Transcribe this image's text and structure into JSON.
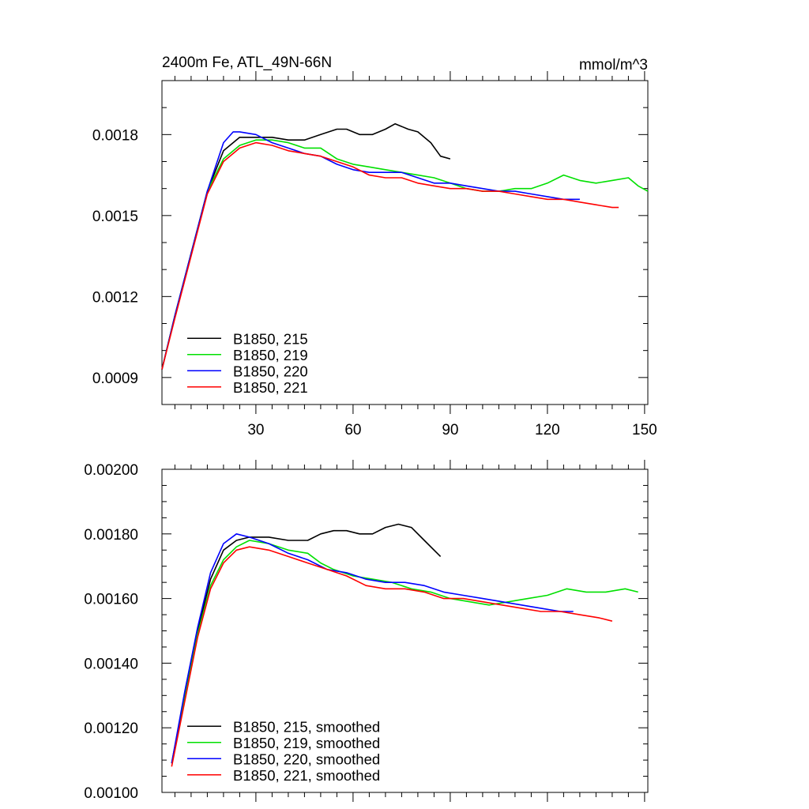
{
  "chart_data": [
    {
      "type": "line",
      "title": "2400m Fe, ATL_49N-66N",
      "units": "mmol/m^3",
      "xlabel": "",
      "ylabel": "",
      "xlim": [
        1,
        151
      ],
      "ylim": [
        0.0008,
        0.002
      ],
      "xticks": [
        30,
        60,
        90,
        120,
        150
      ],
      "xtick_labels": [
        "30",
        "60",
        "90",
        "120",
        "150"
      ],
      "yticks": [
        0.0009,
        0.0012,
        0.0015,
        0.0018
      ],
      "ytick_labels": [
        "0.0009",
        "0.0012",
        "0.0015",
        "0.0018"
      ],
      "legend_position": "bottom-left",
      "series": [
        {
          "name": "B1850, 215",
          "color": "#000000",
          "x": [
            1,
            5,
            10,
            15,
            20,
            25,
            30,
            35,
            40,
            45,
            50,
            55,
            58,
            62,
            66,
            70,
            73,
            77,
            80,
            84,
            87,
            90
          ],
          "y": [
            0.00093,
            0.00113,
            0.00136,
            0.00159,
            0.00174,
            0.00179,
            0.00179,
            0.00179,
            0.00178,
            0.00178,
            0.0018,
            0.00182,
            0.00182,
            0.0018,
            0.0018,
            0.00182,
            0.00184,
            0.00182,
            0.00181,
            0.00177,
            0.00172,
            0.00171
          ]
        },
        {
          "name": "B1850, 219",
          "color": "#00e000",
          "x": [
            1,
            5,
            10,
            15,
            20,
            25,
            30,
            35,
            40,
            45,
            50,
            55,
            60,
            65,
            70,
            75,
            80,
            85,
            90,
            95,
            100,
            105,
            110,
            115,
            120,
            125,
            130,
            135,
            140,
            145,
            148,
            151
          ],
          "y": [
            0.00093,
            0.00113,
            0.00136,
            0.00159,
            0.00171,
            0.00176,
            0.00178,
            0.00178,
            0.00177,
            0.00175,
            0.00175,
            0.00171,
            0.00169,
            0.00168,
            0.00167,
            0.00166,
            0.00165,
            0.00164,
            0.00162,
            0.0016,
            0.00159,
            0.00159,
            0.0016,
            0.0016,
            0.00162,
            0.00165,
            0.00163,
            0.00162,
            0.00163,
            0.00164,
            0.00161,
            0.00159
          ]
        },
        {
          "name": "B1850, 220",
          "color": "#0000ff",
          "x": [
            1,
            5,
            10,
            15,
            20,
            23,
            25,
            30,
            35,
            40,
            45,
            50,
            55,
            60,
            65,
            70,
            75,
            80,
            85,
            90,
            95,
            100,
            105,
            110,
            115,
            120,
            125,
            130
          ],
          "y": [
            0.00093,
            0.00113,
            0.00136,
            0.00159,
            0.00177,
            0.00181,
            0.00181,
            0.0018,
            0.00177,
            0.00175,
            0.00173,
            0.00172,
            0.00169,
            0.00167,
            0.00166,
            0.00166,
            0.00166,
            0.00164,
            0.00162,
            0.00162,
            0.00161,
            0.0016,
            0.00159,
            0.00159,
            0.00158,
            0.00157,
            0.00156,
            0.00156
          ]
        },
        {
          "name": "B1850, 221",
          "color": "#ff0000",
          "x": [
            1,
            5,
            10,
            15,
            20,
            25,
            30,
            35,
            40,
            45,
            50,
            55,
            60,
            65,
            70,
            75,
            80,
            85,
            90,
            95,
            100,
            105,
            110,
            115,
            120,
            125,
            130,
            135,
            140,
            142
          ],
          "y": [
            0.00093,
            0.00112,
            0.00135,
            0.00158,
            0.0017,
            0.00175,
            0.00177,
            0.00176,
            0.00174,
            0.00173,
            0.00172,
            0.0017,
            0.00168,
            0.00165,
            0.00164,
            0.00164,
            0.00162,
            0.00161,
            0.0016,
            0.0016,
            0.00159,
            0.00159,
            0.00158,
            0.00157,
            0.00156,
            0.00156,
            0.00155,
            0.00154,
            0.00153,
            0.00153
          ]
        }
      ]
    },
    {
      "type": "line",
      "title": "",
      "xlabel": "",
      "ylabel": "",
      "xlim": [
        1,
        151
      ],
      "ylim": [
        0.001,
        0.002
      ],
      "xticks": [
        30,
        60,
        90,
        120,
        150
      ],
      "yticks": [
        0.001,
        0.0012,
        0.0014,
        0.0016,
        0.0018,
        0.002
      ],
      "ytick_labels": [
        "0.00100",
        "0.00120",
        "0.00140",
        "0.00160",
        "0.00180",
        "0.00200"
      ],
      "legend_position": "bottom-left",
      "series": [
        {
          "name": "B1850, 215, smoothed",
          "color": "#000000",
          "x": [
            4,
            8,
            12,
            16,
            20,
            24,
            28,
            34,
            40,
            46,
            50,
            54,
            58,
            62,
            66,
            70,
            74,
            78,
            82,
            87
          ],
          "y": [
            0.00109,
            0.0013,
            0.0015,
            0.00166,
            0.00175,
            0.00178,
            0.00179,
            0.00179,
            0.00178,
            0.00178,
            0.0018,
            0.00181,
            0.00181,
            0.0018,
            0.0018,
            0.00182,
            0.00183,
            0.00182,
            0.00178,
            0.00173
          ]
        },
        {
          "name": "B1850, 219, smoothed",
          "color": "#00e000",
          "x": [
            4,
            8,
            12,
            16,
            20,
            24,
            28,
            34,
            40,
            46,
            50,
            54,
            60,
            66,
            72,
            78,
            84,
            90,
            96,
            102,
            108,
            114,
            120,
            126,
            132,
            138,
            144,
            148
          ],
          "y": [
            0.00109,
            0.00129,
            0.00149,
            0.00164,
            0.00172,
            0.00176,
            0.00178,
            0.00177,
            0.00175,
            0.00174,
            0.00171,
            0.00169,
            0.00167,
            0.00166,
            0.00165,
            0.00163,
            0.00162,
            0.0016,
            0.00159,
            0.00158,
            0.00159,
            0.0016,
            0.00161,
            0.00163,
            0.00162,
            0.00162,
            0.00163,
            0.00162
          ]
        },
        {
          "name": "B1850, 220, smoothed",
          "color": "#0000ff",
          "x": [
            4,
            8,
            12,
            16,
            20,
            24,
            28,
            34,
            40,
            46,
            52,
            58,
            64,
            70,
            76,
            82,
            88,
            94,
            100,
            106,
            112,
            118,
            124,
            128
          ],
          "y": [
            0.00109,
            0.00131,
            0.00151,
            0.00168,
            0.00177,
            0.0018,
            0.00179,
            0.00177,
            0.00174,
            0.00172,
            0.00169,
            0.00168,
            0.00166,
            0.00165,
            0.00165,
            0.00164,
            0.00162,
            0.00161,
            0.0016,
            0.00159,
            0.00158,
            0.00157,
            0.00156,
            0.00156
          ]
        },
        {
          "name": "B1850, 221, smoothed",
          "color": "#ff0000",
          "x": [
            4,
            8,
            12,
            16,
            20,
            24,
            28,
            34,
            40,
            46,
            52,
            58,
            64,
            70,
            76,
            82,
            88,
            94,
            100,
            106,
            112,
            118,
            124,
            130,
            136,
            140
          ],
          "y": [
            0.00108,
            0.00128,
            0.00148,
            0.00163,
            0.00171,
            0.00175,
            0.00176,
            0.00175,
            0.00173,
            0.00171,
            0.00169,
            0.00167,
            0.00164,
            0.00163,
            0.00163,
            0.00162,
            0.0016,
            0.0016,
            0.00159,
            0.00158,
            0.00157,
            0.00156,
            0.00156,
            0.00155,
            0.00154,
            0.00153
          ]
        }
      ]
    }
  ]
}
